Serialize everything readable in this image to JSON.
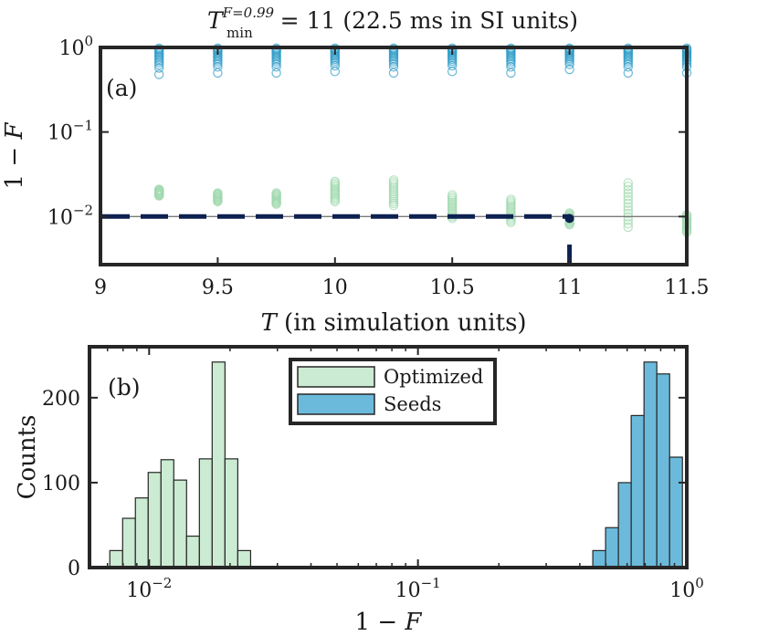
{
  "figure_title": {
    "symbol": "T",
    "superscript": "F=0.99",
    "subscript": "min",
    "rest": " = 11 (22.5 ms in SI units)"
  },
  "chart_data": [
    {
      "panel_label": "(a)",
      "type": "scatter",
      "xlabel": {
        "symbol": "T",
        "rest": " (in simulation units)"
      },
      "ylabel": {
        "prefix": "1 − ",
        "symbol": "F"
      },
      "xlim": [
        9,
        11.5
      ],
      "ylim": [
        0.0027,
        1
      ],
      "yscale": "log",
      "x_ticks": [
        9,
        9.5,
        10,
        10.5,
        11,
        11.5
      ],
      "x_tick_labels": [
        "9",
        "9.5",
        "10",
        "10.5",
        "11",
        "11.5"
      ],
      "y_ticks": [
        1,
        0.1,
        0.01
      ],
      "y_tick_labels": [
        {
          "base": "10",
          "exp": "0"
        },
        {
          "base": "10",
          "exp": "−1"
        },
        {
          "base": "10",
          "exp": "−2"
        }
      ],
      "threshold_line": 0.01,
      "marked_point": {
        "x": 11,
        "y": 0.0095
      },
      "series": [
        {
          "color": "#2e9bc8",
          "x": [
            9.25,
            9.5,
            9.75,
            10,
            10.25,
            10.5,
            10.75,
            11,
            11.25,
            11.5
          ],
          "values_low": [
            0.48,
            0.5,
            0.5,
            0.52,
            0.5,
            0.52,
            0.5,
            0.55,
            0.5,
            0.5
          ],
          "values_high": [
            0.98,
            0.98,
            0.98,
            0.98,
            0.98,
            0.98,
            0.98,
            0.98,
            0.98,
            0.98
          ]
        },
        {
          "color": "#9fd9ae",
          "x": [
            9.25,
            9.5,
            9.75,
            10,
            10.25,
            10.5,
            10.75,
            11,
            11.25,
            11.5
          ],
          "values_low": [
            0.0175,
            0.015,
            0.014,
            0.015,
            0.0135,
            0.0095,
            0.0085,
            0.008,
            0.0075,
            0.0065
          ],
          "values_high": [
            0.021,
            0.019,
            0.019,
            0.026,
            0.027,
            0.018,
            0.016,
            0.011,
            0.025,
            0.0105
          ]
        }
      ]
    },
    {
      "panel_label": "(b)",
      "type": "bar",
      "xlabel": {
        "prefix": "1 − ",
        "symbol": "F"
      },
      "ylabel": "Counts",
      "xscale": "log",
      "xlim": [
        0.006,
        1
      ],
      "ylim": [
        0,
        260
      ],
      "x_ticks": [
        0.01,
        0.1,
        1
      ],
      "x_tick_labels": [
        {
          "base": "10",
          "exp": "−2"
        },
        {
          "base": "10",
          "exp": "−1"
        },
        {
          "base": "10",
          "exp": "0"
        }
      ],
      "y_ticks": [
        0,
        100,
        200
      ],
      "y_tick_labels": [
        "0",
        "100",
        "200"
      ],
      "legend_position": "top-center",
      "series": [
        {
          "name": "Optimized",
          "color": "#cbebd2",
          "bin_edges": [
            0.00714,
            0.00797,
            0.00889,
            0.00992,
            0.01107,
            0.01235,
            0.01378,
            0.01538,
            0.01716,
            0.01915,
            0.02137,
            0.02385
          ],
          "values": [
            20,
            58,
            82,
            112,
            127,
            103,
            37,
            128,
            242,
            128,
            20
          ]
        },
        {
          "name": "Seeds",
          "color": "#6cbadb",
          "bin_edges": [
            0.4471,
            0.4989,
            0.5567,
            0.6213,
            0.6933,
            0.7737,
            0.8634,
            0.9635
          ],
          "values": [
            20,
            47,
            100,
            179,
            242,
            228,
            130
          ]
        }
      ]
    }
  ]
}
